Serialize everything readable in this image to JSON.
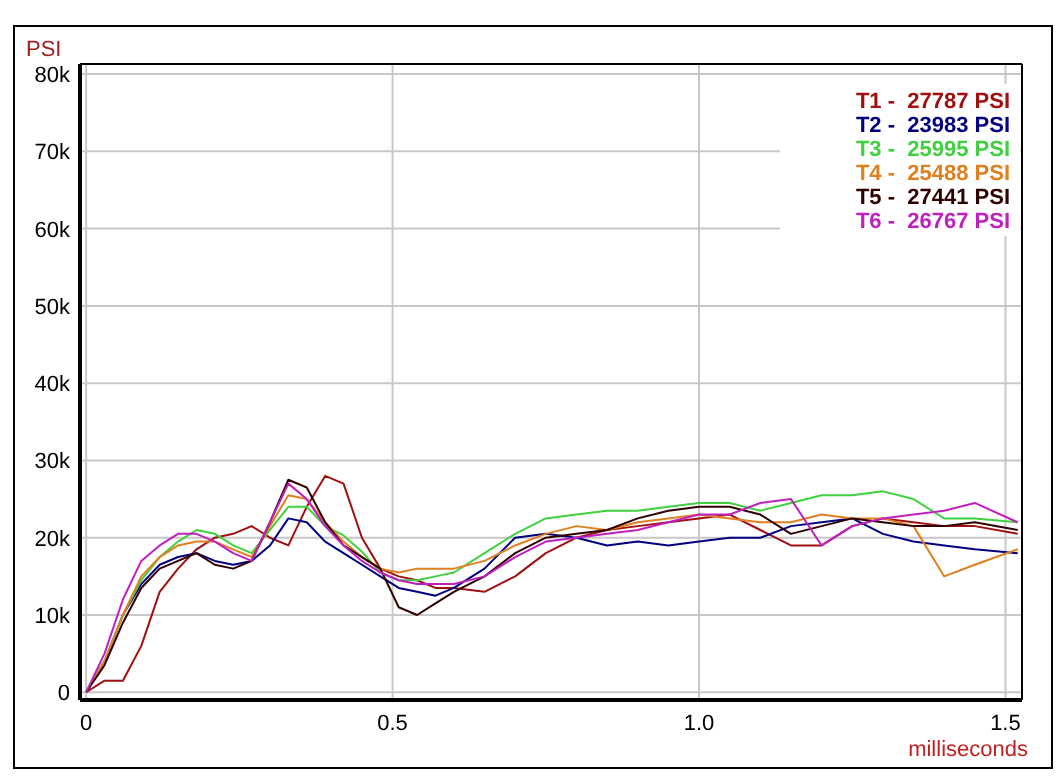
{
  "chart_data": {
    "type": "line",
    "xlabel": "milliseconds",
    "ylabel": "PSI",
    "x": [
      0,
      0.03,
      0.06,
      0.09,
      0.12,
      0.15,
      0.18,
      0.21,
      0.24,
      0.27,
      0.3,
      0.33,
      0.36,
      0.39,
      0.42,
      0.45,
      0.48,
      0.51,
      0.54,
      0.57,
      0.6,
      0.65,
      0.7,
      0.75,
      0.8,
      0.85,
      0.9,
      0.95,
      1.0,
      1.05,
      1.1,
      1.15,
      1.2,
      1.25,
      1.3,
      1.35,
      1.4,
      1.45,
      1.52
    ],
    "xlim": [
      -0.01,
      1.527
    ],
    "xticks": [
      0,
      0.5,
      {
        "value": 1,
        "label": "1.0"
      },
      1.5
    ],
    "ylim": [
      -1000,
      81300
    ],
    "yticks": [
      0,
      {
        "value": 10000,
        "label": "10k"
      },
      {
        "value": 20000,
        "label": "20k"
      },
      {
        "value": 30000,
        "label": "30k"
      },
      {
        "value": 40000,
        "label": "40k"
      },
      {
        "value": 50000,
        "label": "50k"
      },
      {
        "value": 60000,
        "label": "60k"
      },
      {
        "value": 70000,
        "label": "70k"
      },
      {
        "value": 80000,
        "label": "80k"
      }
    ],
    "grid": true,
    "legend": "top right",
    "marker": "none",
    "line_style": "solid",
    "series": [
      {
        "name": "T1 -  27787 PSI",
        "color": "#a01010",
        "values": [
          0,
          1500,
          1500,
          6000,
          13000,
          16000,
          18500,
          20000,
          20500,
          21500,
          20000,
          19000,
          24000,
          28000,
          27000,
          20000,
          16000,
          15000,
          14500,
          13500,
          13500,
          13000,
          15000,
          18000,
          20000,
          21000,
          21500,
          22000,
          22500,
          23000,
          21000,
          19000,
          19000,
          21500,
          22500,
          22000,
          21500,
          21500,
          20500
        ]
      },
      {
        "name": "T2 -  23983 PSI",
        "color": "#000080",
        "values": [
          0,
          4000,
          10000,
          14000,
          16500,
          17500,
          18000,
          17000,
          16500,
          17000,
          19000,
          22500,
          22000,
          19500,
          18000,
          16500,
          15000,
          13500,
          13000,
          12500,
          13500,
          16000,
          20000,
          20500,
          20000,
          19000,
          19500,
          19000,
          19500,
          20000,
          20000,
          21500,
          22000,
          22500,
          20500,
          19500,
          19000,
          18500,
          18000
        ]
      },
      {
        "name": "T3 -  25995 PSI",
        "color": "#40d040",
        "values": [
          0,
          4000,
          10000,
          14500,
          17500,
          19500,
          21000,
          20500,
          19000,
          18000,
          21000,
          24000,
          24000,
          21500,
          20300,
          18200,
          15500,
          14500,
          14500,
          15000,
          15500,
          18000,
          20500,
          22500,
          23000,
          23500,
          23500,
          24000,
          24500,
          24500,
          23500,
          24500,
          25500,
          25500,
          26000,
          25000,
          22500,
          22500,
          22000
        ]
      },
      {
        "name": "T4 -  25488 PSI",
        "color": "#e08020",
        "values": [
          0,
          4000,
          10000,
          15000,
          17500,
          19000,
          19500,
          19500,
          18500,
          17500,
          21500,
          25500,
          25000,
          22000,
          19500,
          17500,
          16000,
          15500,
          16000,
          16000,
          16000,
          17000,
          19000,
          20500,
          21500,
          21000,
          22000,
          22500,
          23000,
          22500,
          22000,
          22000,
          23000,
          22500,
          22500,
          21500,
          15000,
          16500,
          18500
        ]
      },
      {
        "name": "T5 -  27441 PSI",
        "color": "#300000",
        "values": [
          0,
          3500,
          9000,
          13500,
          16000,
          17000,
          18000,
          16500,
          16000,
          17000,
          22000,
          27500,
          26500,
          22000,
          19000,
          17500,
          16000,
          11000,
          10000,
          11500,
          13000,
          15000,
          18000,
          20000,
          20500,
          21000,
          22500,
          23500,
          24000,
          24000,
          23000,
          20500,
          21500,
          22500,
          22000,
          21500,
          21500,
          22000,
          21000
        ]
      },
      {
        "name": "T6 -  26767 PSI",
        "color": "#c020c0",
        "values": [
          0,
          5000,
          12000,
          17000,
          19000,
          20500,
          20500,
          19500,
          18000,
          17000,
          22000,
          27000,
          25000,
          21500,
          19000,
          17000,
          15500,
          14500,
          14000,
          14000,
          14000,
          15000,
          17500,
          19500,
          20000,
          20500,
          21000,
          22000,
          23000,
          23000,
          24500,
          25000,
          19000,
          21500,
          22500,
          23000,
          23500,
          24500,
          22000
        ]
      }
    ]
  }
}
